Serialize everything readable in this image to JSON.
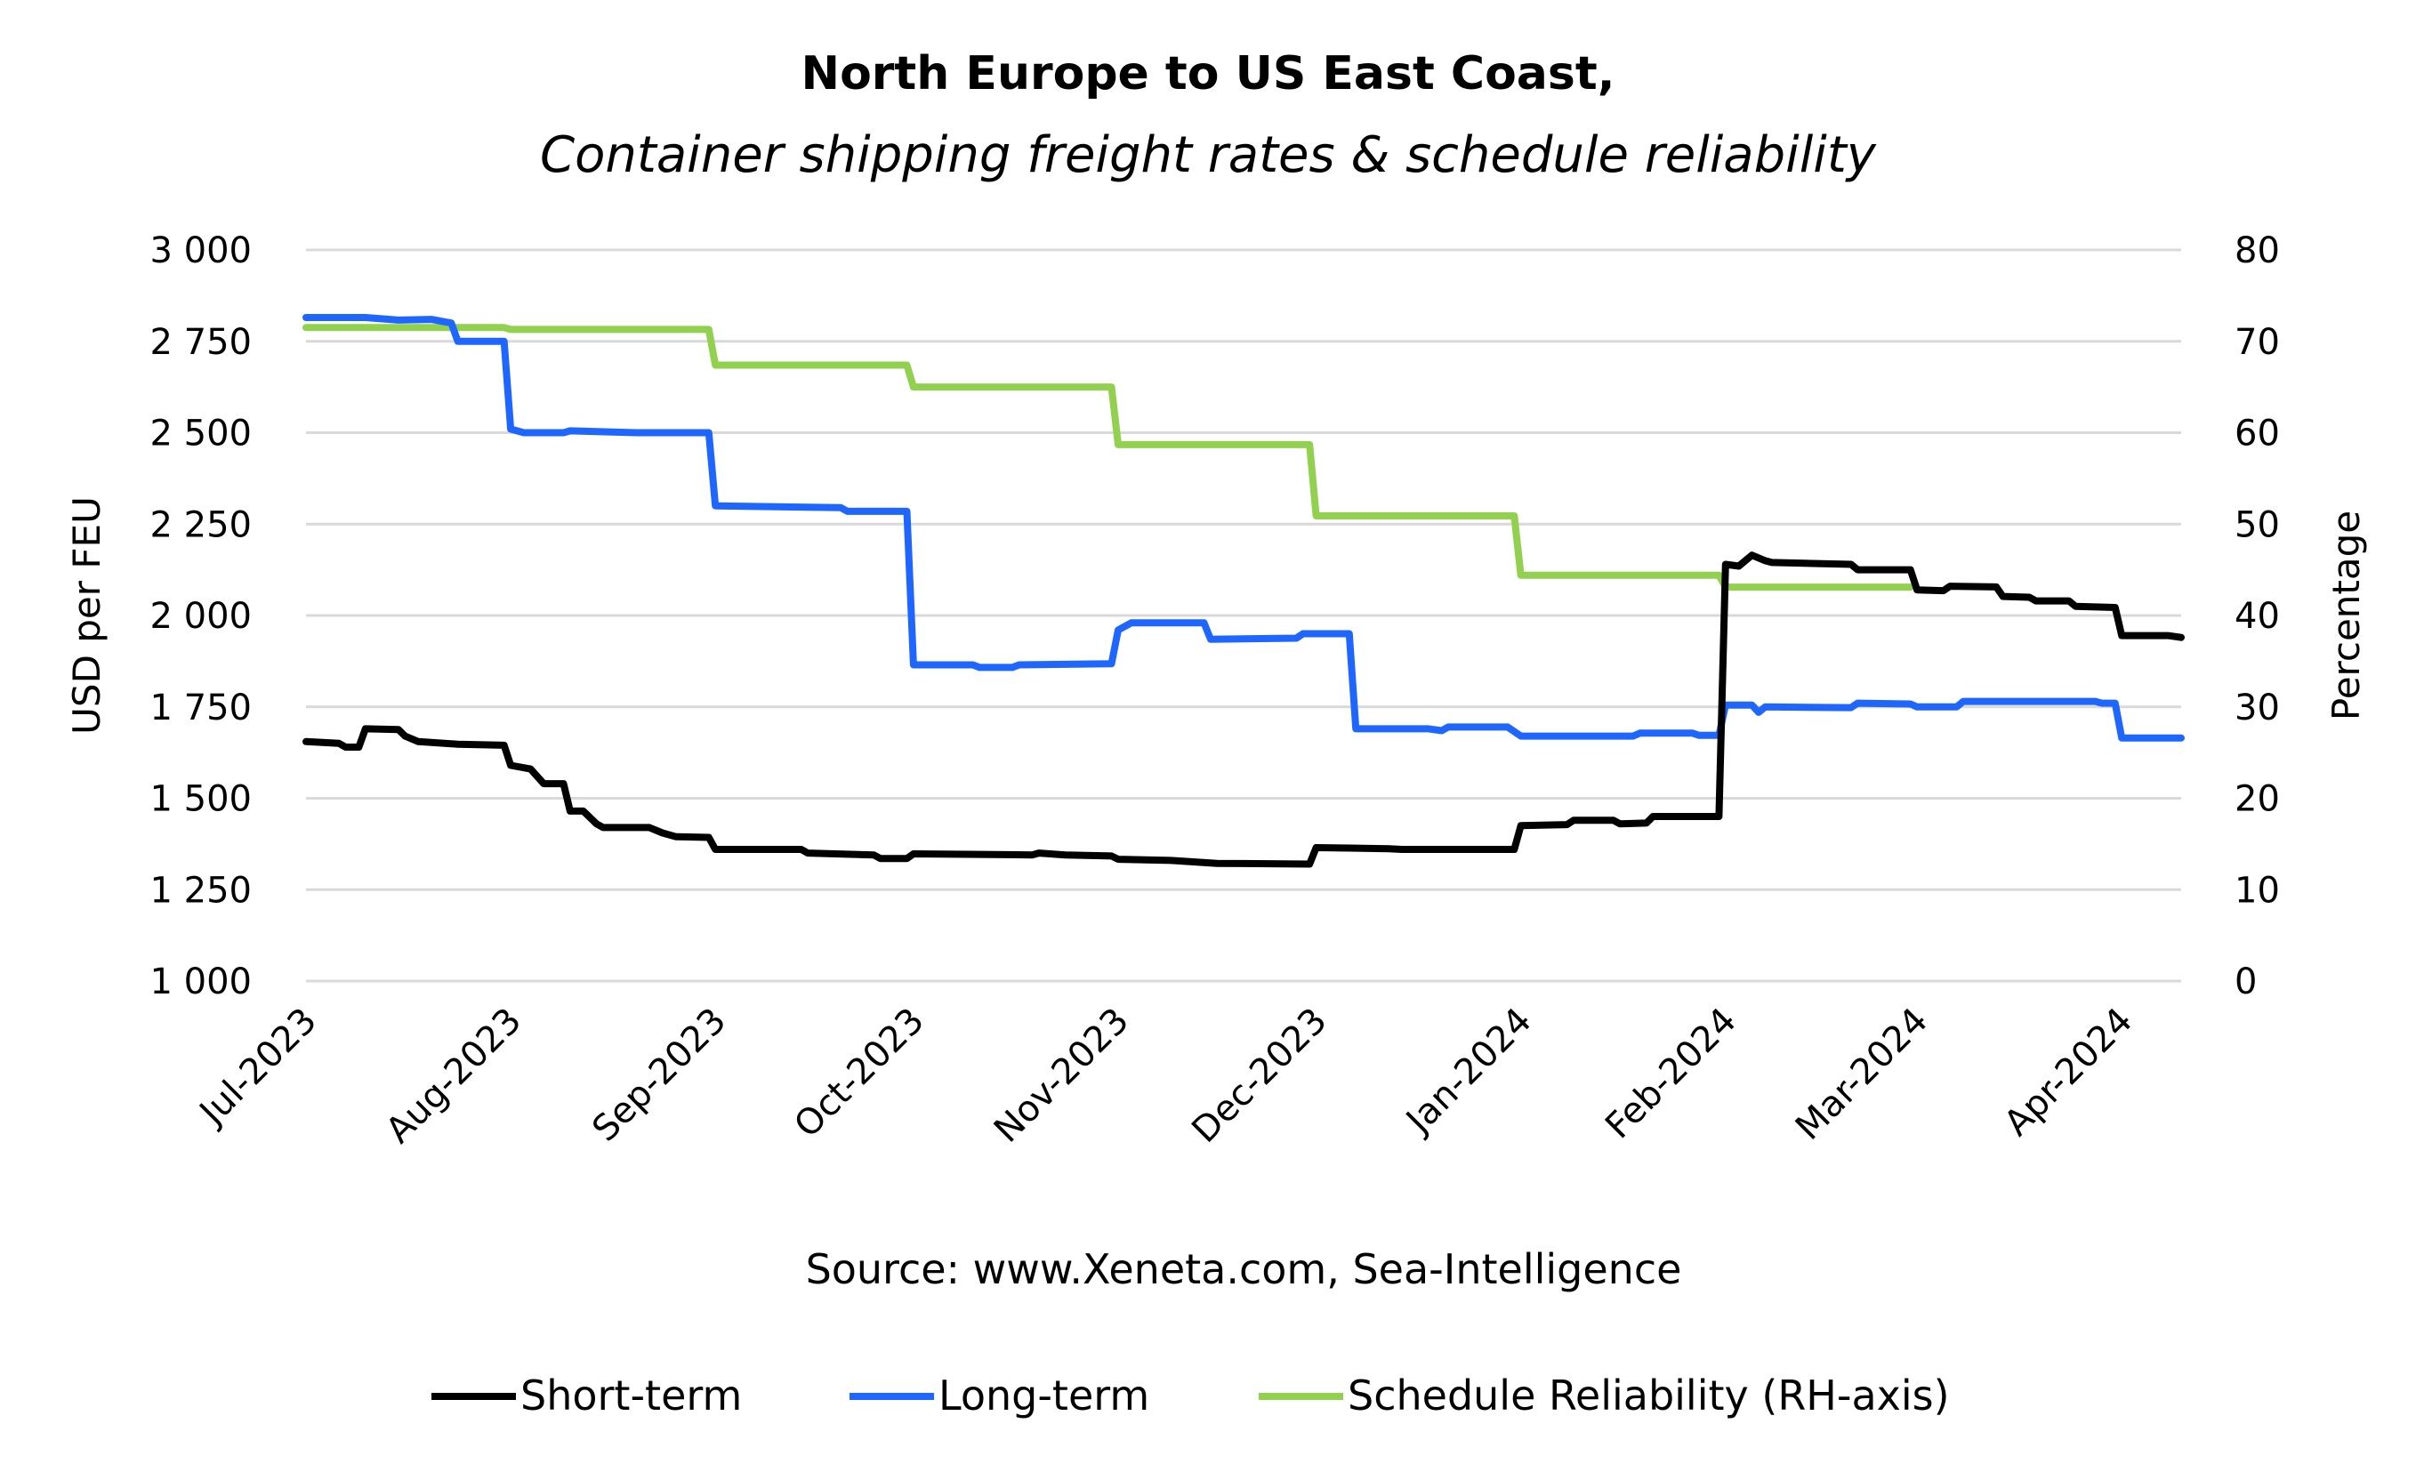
{
  "chart_data": {
    "type": "line",
    "title": "North Europe to US East Coast,",
    "subtitle": "Container shipping freight rates & schedule reliability",
    "source": "Source: www.Xeneta.com, Sea-Intelligence",
    "ylabel": "USD per FEU",
    "y2label": "Percentage",
    "ylim": [
      1000,
      3000
    ],
    "y2lim": [
      0,
      80
    ],
    "yticks": [
      "1 000",
      "1 250",
      "1 500",
      "1 750",
      "2 000",
      "2 250",
      "2 500",
      "2 750",
      "3 000"
    ],
    "y2ticks": [
      "0",
      "10",
      "20",
      "30",
      "40",
      "50",
      "60",
      "70",
      "80"
    ],
    "xlim": [
      "2023-07-01",
      "2024-04-10"
    ],
    "xticks": [
      {
        "date": "2023-07-01",
        "label": "Jul-2023"
      },
      {
        "date": "2023-08-01",
        "label": "Aug-2023"
      },
      {
        "date": "2023-09-01",
        "label": "Sep-2023"
      },
      {
        "date": "2023-10-01",
        "label": "Oct-2023"
      },
      {
        "date": "2023-11-01",
        "label": "Nov-2023"
      },
      {
        "date": "2023-12-01",
        "label": "Dec-2023"
      },
      {
        "date": "2024-01-01",
        "label": "Jan-2024"
      },
      {
        "date": "2024-02-01",
        "label": "Feb-2024"
      },
      {
        "date": "2024-03-01",
        "label": "Mar-2024"
      },
      {
        "date": "2024-04-01",
        "label": "Apr-2024"
      }
    ],
    "grid": true,
    "legend_position": "bottom",
    "series": [
      {
        "name": "Short-term",
        "axis": "left",
        "color": "#000000",
        "points": [
          [
            "2023-07-01",
            1655
          ],
          [
            "2023-07-06",
            1650
          ],
          [
            "2023-07-07",
            1640
          ],
          [
            "2023-07-09",
            1640
          ],
          [
            "2023-07-10",
            1690
          ],
          [
            "2023-07-15",
            1688
          ],
          [
            "2023-07-16",
            1670
          ],
          [
            "2023-07-18",
            1655
          ],
          [
            "2023-07-24",
            1648
          ],
          [
            "2023-07-31",
            1645
          ],
          [
            "2023-08-01",
            1590
          ],
          [
            "2023-08-04",
            1580
          ],
          [
            "2023-08-06",
            1540
          ],
          [
            "2023-08-09",
            1540
          ],
          [
            "2023-08-10",
            1465
          ],
          [
            "2023-08-12",
            1465
          ],
          [
            "2023-08-14",
            1430
          ],
          [
            "2023-08-15",
            1420
          ],
          [
            "2023-08-22",
            1420
          ],
          [
            "2023-08-24",
            1405
          ],
          [
            "2023-08-26",
            1395
          ],
          [
            "2023-08-31",
            1393
          ],
          [
            "2023-09-01",
            1360
          ],
          [
            "2023-09-14",
            1360
          ],
          [
            "2023-09-15",
            1350
          ],
          [
            "2023-09-25",
            1345
          ],
          [
            "2023-09-26",
            1335
          ],
          [
            "2023-09-30",
            1335
          ],
          [
            "2023-10-01",
            1348
          ],
          [
            "2023-10-19",
            1345
          ],
          [
            "2023-10-20",
            1350
          ],
          [
            "2023-10-24",
            1345
          ],
          [
            "2023-10-31",
            1342
          ],
          [
            "2023-11-01",
            1333
          ],
          [
            "2023-11-09",
            1330
          ],
          [
            "2023-11-16",
            1322
          ],
          [
            "2023-11-30",
            1320
          ],
          [
            "2023-12-01",
            1365
          ],
          [
            "2023-12-12",
            1362
          ],
          [
            "2023-12-14",
            1360
          ],
          [
            "2023-12-31",
            1360
          ],
          [
            "2024-01-01",
            1425
          ],
          [
            "2024-01-08",
            1428
          ],
          [
            "2024-01-09",
            1440
          ],
          [
            "2024-01-15",
            1440
          ],
          [
            "2024-01-16",
            1430
          ],
          [
            "2024-01-20",
            1432
          ],
          [
            "2024-01-21",
            1450
          ],
          [
            "2024-01-31",
            1450
          ],
          [
            "2024-02-01",
            2140
          ],
          [
            "2024-02-03",
            2135
          ],
          [
            "2024-02-05",
            2165
          ],
          [
            "2024-02-07",
            2150
          ],
          [
            "2024-02-08",
            2145
          ],
          [
            "2024-02-20",
            2140
          ],
          [
            "2024-02-21",
            2125
          ],
          [
            "2024-02-29",
            2125
          ],
          [
            "2024-03-01",
            2070
          ],
          [
            "2024-03-05",
            2068
          ],
          [
            "2024-03-06",
            2080
          ],
          [
            "2024-03-13",
            2078
          ],
          [
            "2024-03-14",
            2052
          ],
          [
            "2024-03-18",
            2050
          ],
          [
            "2024-03-19",
            2040
          ],
          [
            "2024-03-24",
            2040
          ],
          [
            "2024-03-25",
            2025
          ],
          [
            "2024-03-31",
            2022
          ],
          [
            "2024-04-01",
            1945
          ],
          [
            "2024-04-08",
            1945
          ],
          [
            "2024-04-10",
            1940
          ]
        ]
      },
      {
        "name": "Long-term",
        "axis": "left",
        "color": "#1F66FF",
        "points": [
          [
            "2023-07-01",
            2815
          ],
          [
            "2023-07-10",
            2815
          ],
          [
            "2023-07-15",
            2808
          ],
          [
            "2023-07-20",
            2810
          ],
          [
            "2023-07-23",
            2800
          ],
          [
            "2023-07-24",
            2750
          ],
          [
            "2023-07-31",
            2750
          ],
          [
            "2023-08-01",
            2510
          ],
          [
            "2023-08-03",
            2500
          ],
          [
            "2023-08-09",
            2500
          ],
          [
            "2023-08-10",
            2505
          ],
          [
            "2023-08-20",
            2500
          ],
          [
            "2023-08-31",
            2500
          ],
          [
            "2023-09-01",
            2300
          ],
          [
            "2023-09-20",
            2295
          ],
          [
            "2023-09-21",
            2285
          ],
          [
            "2023-09-30",
            2285
          ],
          [
            "2023-10-01",
            1865
          ],
          [
            "2023-10-10",
            1865
          ],
          [
            "2023-10-11",
            1858
          ],
          [
            "2023-10-16",
            1858
          ],
          [
            "2023-10-17",
            1865
          ],
          [
            "2023-10-31",
            1868
          ],
          [
            "2023-11-01",
            1960
          ],
          [
            "2023-11-03",
            1980
          ],
          [
            "2023-11-14",
            1980
          ],
          [
            "2023-11-15",
            1935
          ],
          [
            "2023-11-28",
            1938
          ],
          [
            "2023-11-29",
            1950
          ],
          [
            "2023-12-06",
            1950
          ],
          [
            "2023-12-07",
            1690
          ],
          [
            "2023-12-18",
            1690
          ],
          [
            "2023-12-20",
            1685
          ],
          [
            "2023-12-21",
            1695
          ],
          [
            "2023-12-30",
            1695
          ],
          [
            "2024-01-01",
            1670
          ],
          [
            "2024-01-18",
            1670
          ],
          [
            "2024-01-19",
            1678
          ],
          [
            "2024-01-27",
            1678
          ],
          [
            "2024-01-28",
            1672
          ],
          [
            "2024-01-31",
            1672
          ],
          [
            "2024-02-01",
            1755
          ],
          [
            "2024-02-05",
            1755
          ],
          [
            "2024-02-06",
            1735
          ],
          [
            "2024-02-07",
            1750
          ],
          [
            "2024-02-20",
            1748
          ],
          [
            "2024-02-21",
            1760
          ],
          [
            "2024-02-29",
            1758
          ],
          [
            "2024-03-01",
            1750
          ],
          [
            "2024-03-07",
            1750
          ],
          [
            "2024-03-08",
            1765
          ],
          [
            "2024-03-28",
            1765
          ],
          [
            "2024-03-29",
            1760
          ],
          [
            "2024-03-31",
            1760
          ],
          [
            "2024-04-01",
            1665
          ],
          [
            "2024-04-10",
            1665
          ]
        ]
      },
      {
        "name": "Schedule Reliability (RH-axis)",
        "axis": "right",
        "color": "#92D050",
        "points": [
          [
            "2023-07-01",
            71.5
          ],
          [
            "2023-07-31",
            71.5
          ],
          [
            "2023-08-01",
            71.3
          ],
          [
            "2023-08-31",
            71.3
          ],
          [
            "2023-09-01",
            67.4
          ],
          [
            "2023-09-30",
            67.4
          ],
          [
            "2023-10-01",
            65.0
          ],
          [
            "2023-10-31",
            65.0
          ],
          [
            "2023-11-01",
            58.7
          ],
          [
            "2023-11-30",
            58.7
          ],
          [
            "2023-12-01",
            50.9
          ],
          [
            "2023-12-31",
            50.9
          ],
          [
            "2024-01-01",
            44.4
          ],
          [
            "2024-01-31",
            44.4
          ],
          [
            "2024-02-01",
            43.1
          ],
          [
            "2024-02-29",
            43.1
          ]
        ]
      }
    ]
  }
}
